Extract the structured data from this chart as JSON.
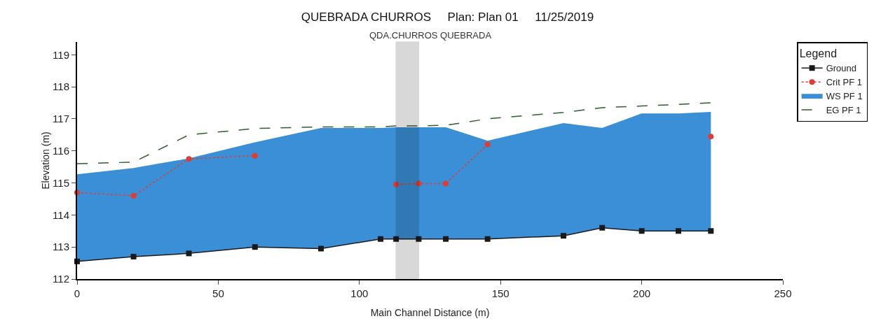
{
  "chart_data": {
    "type": "line",
    "title": "QUEBRADA CHURROS     Plan: Plan 01     11/25/2019",
    "xlabel": "Main Channel Distance (m)",
    "ylabel": "Elevation (m)",
    "legend_title": "Legend",
    "legend": "right",
    "x": [
      0,
      20,
      39.6,
      63,
      86.4,
      107.5,
      113,
      121,
      130.6,
      145.4,
      172.3,
      186,
      200,
      213,
      224.5
    ],
    "xlim": [
      0,
      250
    ],
    "xticks": [
      0,
      50,
      100,
      150,
      200,
      250
    ],
    "ylim": [
      112,
      119.4
    ],
    "yticks": [
      112,
      113,
      114,
      115,
      116,
      117,
      118,
      119
    ],
    "grid": false,
    "annotations": [
      "QDA.CHURROS QUEBRADA"
    ],
    "bands": [
      {
        "axis": "x",
        "from": 113,
        "to": 121,
        "label": null,
        "color": "#000000"
      }
    ],
    "series": [
      {
        "name": "EG PF 1",
        "color": "#2e5e2e",
        "line_style": "dashed",
        "marker": "none",
        "values": [
          115.6,
          115.65,
          116.5,
          116.7,
          116.75,
          116.75,
          116.78,
          116.78,
          116.8,
          117.0,
          117.2,
          117.35,
          117.4,
          117.45,
          117.5
        ]
      },
      {
        "name": "WS PF 1",
        "type": "area",
        "color": "#3a8fd6",
        "line_style": "solid",
        "marker": "none",
        "values": [
          115.25,
          115.45,
          115.75,
          116.25,
          116.7,
          116.7,
          116.72,
          116.72,
          116.72,
          116.3,
          116.85,
          116.7,
          117.15,
          117.15,
          117.2
        ]
      },
      {
        "name": "Crit PF 1",
        "color": "#e03c31",
        "line_style": "dotted",
        "marker": "circle",
        "values": [
          114.7,
          114.6,
          115.75,
          115.85,
          null,
          null,
          114.95,
          114.98,
          114.98,
          116.2,
          null,
          null,
          null,
          null,
          116.45
        ]
      },
      {
        "name": "Ground",
        "color": "#1a1a1a",
        "line_style": "solid",
        "marker": "square",
        "values": [
          112.55,
          112.7,
          112.8,
          113.0,
          112.95,
          113.25,
          113.25,
          113.25,
          113.25,
          113.25,
          113.35,
          113.6,
          113.5,
          113.5,
          113.5
        ]
      }
    ]
  }
}
